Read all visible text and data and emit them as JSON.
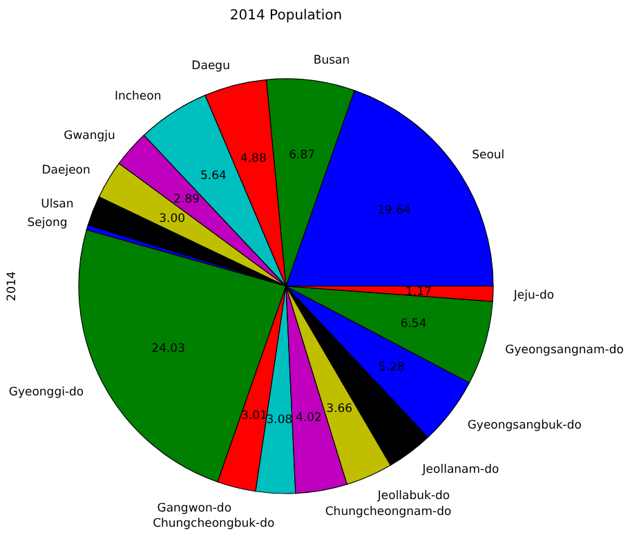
{
  "chart_data": {
    "type": "pie",
    "title": "2014 Population",
    "ylabel": "2014",
    "categories": [
      "Seoul",
      "Busan",
      "Daegu",
      "Incheon",
      "Gwangju",
      "Daejeon",
      "Ulsan",
      "Sejong",
      "Gyeonggi-do",
      "Gangwon-do",
      "Chungcheongbuk-do",
      "Chungcheongnam-do",
      "Jeollabuk-do",
      "Jeollanam-do",
      "Gyeongsangbuk-do",
      "Gyeongsangnam-do",
      "Jeju-do"
    ],
    "values": [
      19.64,
      6.87,
      4.88,
      5.64,
      2.89,
      3.0,
      2.32,
      0.38,
      24.03,
      3.01,
      3.08,
      4.02,
      3.66,
      3.59,
      5.28,
      6.54,
      1.17
    ],
    "colors": [
      "#0000ff",
      "#008000",
      "#ff0000",
      "#00bfbf",
      "#bf00bf",
      "#bfbf00",
      "#000000",
      "#0000ff",
      "#008000",
      "#ff0000",
      "#00bfbf",
      "#bf00bf",
      "#bfbf00",
      "#000000",
      "#0000ff",
      "#008000",
      "#ff0000"
    ],
    "value_labels": [
      "19.64",
      "6.87",
      "4.88",
      "5.64",
      "2.89",
      "3.00",
      null,
      null,
      "24.03",
      "3.01",
      "3.08",
      "4.02",
      "3.66",
      null,
      "5.28",
      "6.54",
      "1.17"
    ]
  }
}
